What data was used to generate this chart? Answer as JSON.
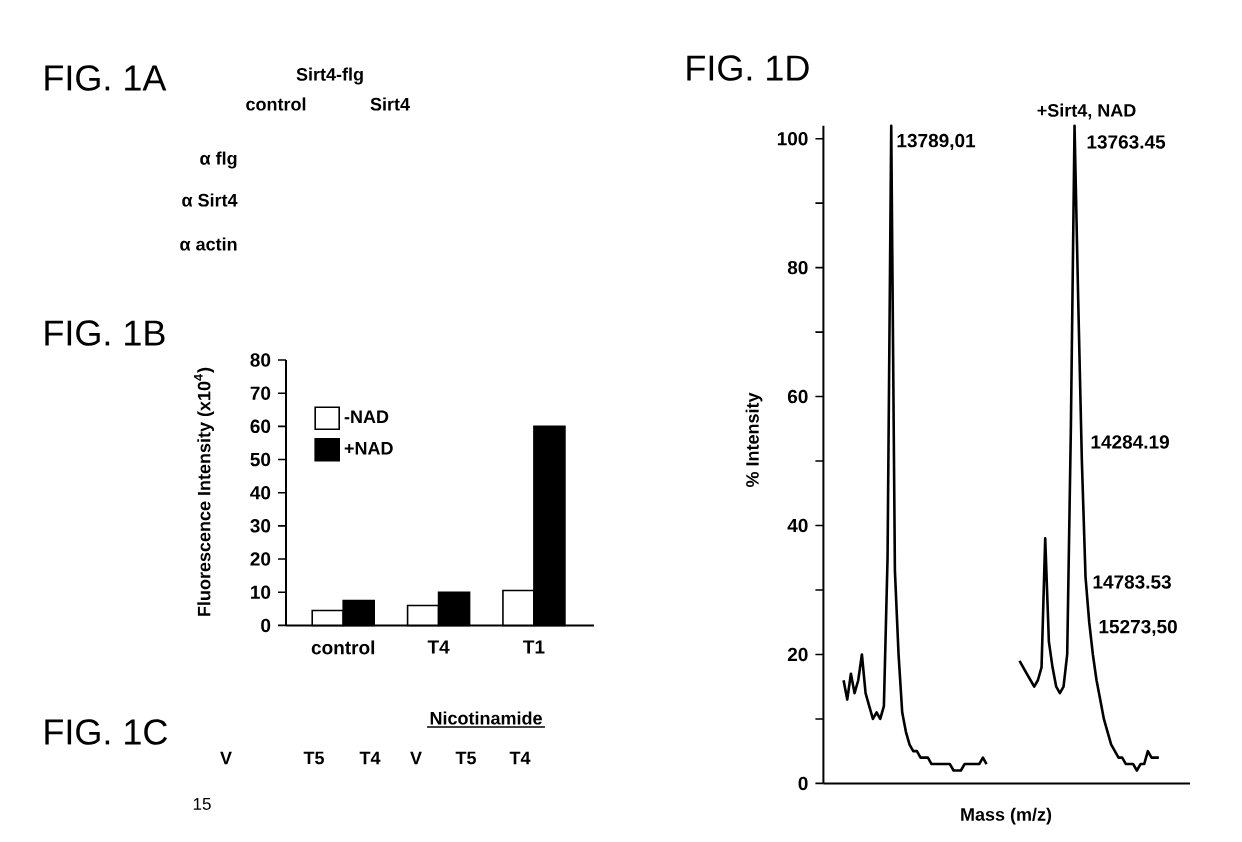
{
  "chart_data": [
    {
      "type": "other",
      "title": "FIG. 1A",
      "annotations": [
        "Sirt4-flg",
        "control",
        "Sirt4",
        "α flg",
        "α Sirt4",
        "α actin"
      ]
    },
    {
      "type": "bar",
      "title": "FIG. 1B",
      "ylabel": "Fluorescence Intensity (x10$^{4}$)",
      "categories": [
        "control",
        "T4",
        "T1"
      ],
      "series": [
        {
          "name": "-NAD",
          "color": "#ffffff",
          "values": [
            4.5,
            6,
            10.5
          ]
        },
        {
          "name": "+NAD",
          "color": "#000000",
          "values": [
            7.5,
            10,
            60
          ]
        }
      ],
      "ylim": [
        0,
        80
      ],
      "yticks": [
        0,
        10,
        20,
        30,
        40,
        50,
        60,
        70,
        80
      ],
      "legend": "top left"
    },
    {
      "type": "other",
      "title": "FIG. 1C",
      "annotations": [
        "Nicotinamide",
        "V",
        "T5",
        "T4",
        "V",
        "T5",
        "T4",
        "15"
      ]
    },
    {
      "type": "line",
      "title": "FIG. 1D",
      "xlabel": "Mass (m/z)",
      "ylabel": "% Intensity",
      "categories": [
        null,
        null,
        null,
        null,
        null,
        null,
        null,
        null,
        null,
        null,
        null,
        null,
        null,
        null,
        null,
        null,
        null,
        null,
        null,
        null,
        null,
        null,
        null,
        null,
        null,
        null,
        null,
        null,
        null,
        null,
        null,
        null,
        null,
        null,
        null,
        null,
        null,
        null,
        null,
        null,
        null,
        null,
        null,
        null,
        null,
        null,
        null,
        null,
        null,
        null,
        null,
        null,
        null,
        null,
        null,
        null,
        null,
        null,
        null,
        null,
        null,
        null,
        null,
        null,
        null,
        null,
        null,
        null,
        null,
        null,
        null,
        null,
        null,
        null,
        null,
        null,
        null,
        null,
        null,
        null,
        null,
        null,
        null,
        null,
        null,
        null,
        null,
        null,
        null,
        null,
        null,
        null,
        null,
        null,
        null,
        null,
        null,
        null,
        null,
        null
      ],
      "series": [
        {
          "color": "#000000",
          "values": [
            null,
            null,
            null,
            null,
            null,
            16,
            13,
            17,
            14,
            16,
            20,
            14,
            12,
            10,
            11,
            10,
            12,
            35,
            102,
            33,
            20,
            11,
            8,
            6,
            5,
            5,
            4,
            4,
            4,
            3,
            3,
            3,
            3,
            3,
            3,
            2,
            2,
            2,
            3,
            3,
            3,
            3,
            3,
            4,
            3,
            null,
            null,
            null,
            null,
            null,
            null,
            null,
            null,
            null,
            null,
            null,
            null,
            null,
            null,
            null,
            null,
            null,
            null,
            null,
            null,
            null,
            null,
            null,
            null,
            null,
            null,
            null,
            null,
            null,
            null,
            null,
            null,
            null,
            null,
            null,
            null,
            null,
            null,
            null,
            null,
            null,
            null,
            null,
            null,
            null,
            null,
            null,
            null,
            null,
            null,
            null,
            null,
            null,
            null,
            null
          ]
        },
        {
          "name": "+Sirt4, NAD",
          "color": "#000000",
          "values": [
            null,
            null,
            null,
            null,
            null,
            null,
            null,
            null,
            null,
            null,
            null,
            null,
            null,
            null,
            null,
            null,
            null,
            null,
            null,
            null,
            null,
            null,
            null,
            null,
            null,
            null,
            null,
            null,
            null,
            null,
            null,
            null,
            null,
            null,
            null,
            null,
            null,
            null,
            null,
            null,
            null,
            null,
            null,
            null,
            null,
            null,
            null,
            null,
            null,
            null,
            null,
            null,
            null,
            19,
            18,
            17,
            16,
            15,
            16,
            18,
            38,
            22,
            18,
            15,
            14,
            15,
            20,
            55,
            102,
            75,
            50,
            32,
            25,
            20,
            16,
            13,
            10,
            8,
            6,
            5,
            4,
            4,
            3,
            3,
            3,
            2,
            3,
            3,
            5,
            4,
            4,
            4,
            null,
            null,
            null,
            null,
            null,
            null,
            null,
            null
          ]
        }
      ],
      "ylim": [
        0,
        102
      ],
      "yticks": [
        0,
        {
          "value": 10,
          "label": null
        },
        20,
        {
          "value": 30,
          "label": null
        },
        40,
        {
          "value": 50,
          "label": null
        },
        60,
        {
          "value": 70,
          "label": null
        },
        80,
        {
          "value": 90,
          "label": null
        },
        100
      ],
      "annotations": [
        "13789,01",
        "13763.45",
        "14284.19",
        "14783.53",
        "15273,50"
      ]
    }
  ]
}
